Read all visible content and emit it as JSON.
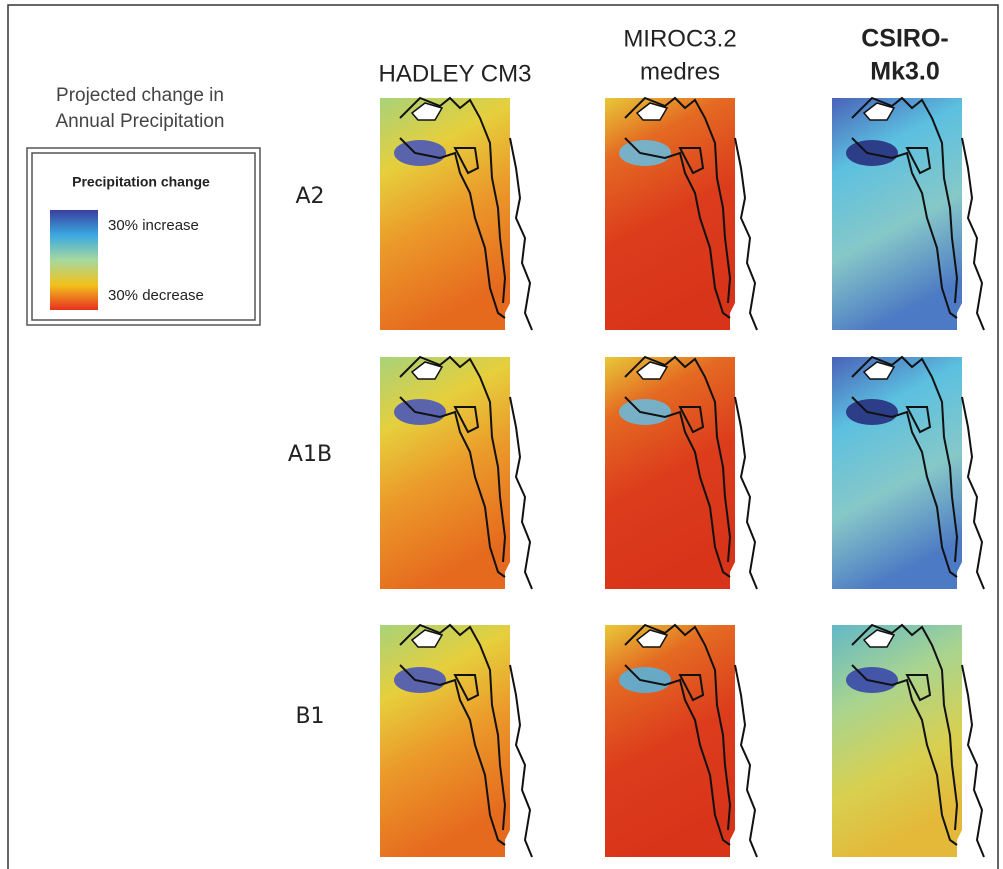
{
  "legend_panel": {
    "title_lines": [
      "Projected change in",
      "Annual Precipitation"
    ],
    "legend": {
      "title": "Precipitation change",
      "high_label": "30% increase",
      "low_label": "30% decrease"
    }
  },
  "columns": [
    {
      "lines": [
        "HADLEY CM3"
      ]
    },
    {
      "lines": [
        "MIROC3.2",
        "medres"
      ]
    },
    {
      "lines": [
        "CSIRO-",
        "Mk3.0"
      ]
    }
  ],
  "rows": [
    "A2",
    "A1B",
    "B1"
  ]
}
